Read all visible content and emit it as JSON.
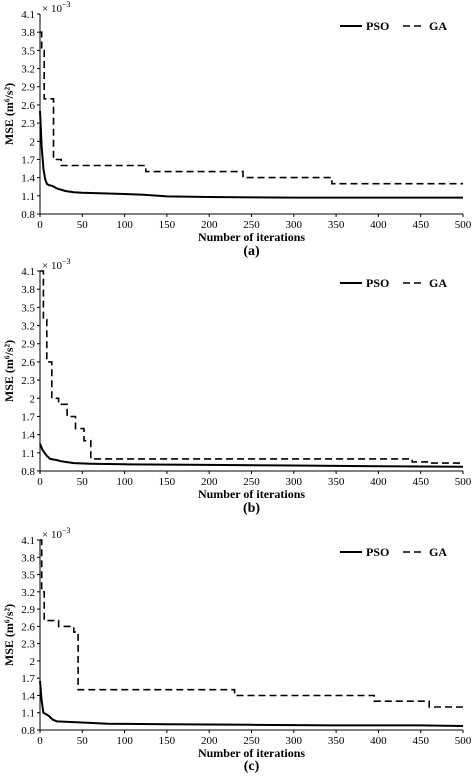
{
  "chart_data": [
    {
      "type": "line",
      "panel_label": "(a)",
      "multiplier_base": "× 10",
      "multiplier_exp": "−3",
      "xlabel": "Number of iterations",
      "ylabel": "MSE (m⁶/s²)",
      "xlim": [
        0,
        500
      ],
      "ylim": [
        0.8,
        4.1
      ],
      "x_ticks": [
        0,
        50,
        100,
        150,
        200,
        250,
        300,
        350,
        400,
        450,
        500
      ],
      "y_ticks": [
        0.8,
        1.1,
        1.4,
        1.7,
        2,
        2.3,
        2.6,
        2.9,
        3.2,
        3.5,
        3.8,
        4.1
      ],
      "legend_position": "top-right",
      "series": [
        {
          "name": "PSO",
          "style": "solid",
          "x": [
            0,
            2,
            4,
            6,
            8,
            10,
            15,
            20,
            30,
            40,
            50,
            100,
            120,
            140,
            150,
            200,
            300,
            400,
            500
          ],
          "y": [
            2.5,
            1.9,
            1.55,
            1.38,
            1.3,
            1.28,
            1.26,
            1.22,
            1.18,
            1.16,
            1.15,
            1.13,
            1.12,
            1.1,
            1.09,
            1.08,
            1.07,
            1.07,
            1.07
          ]
        },
        {
          "name": "GA",
          "style": "dashed",
          "step": true,
          "x": [
            0,
            2,
            5,
            16,
            25,
            125,
            240,
            345,
            500
          ],
          "y": [
            3.8,
            3.5,
            2.7,
            1.7,
            1.6,
            1.5,
            1.4,
            1.3,
            1.3
          ]
        }
      ]
    },
    {
      "type": "line",
      "panel_label": "(b)",
      "multiplier_base": "× 10",
      "multiplier_exp": "−3",
      "xlabel": "Number of iterations",
      "ylabel": "MSE (m⁶/s²)",
      "xlim": [
        0,
        500
      ],
      "ylim": [
        0.8,
        4.1
      ],
      "x_ticks": [
        0,
        50,
        100,
        150,
        200,
        250,
        300,
        350,
        400,
        450,
        500
      ],
      "y_ticks": [
        0.8,
        1.1,
        1.4,
        1.7,
        2,
        2.3,
        2.6,
        2.9,
        3.2,
        3.5,
        3.8,
        4.1
      ],
      "legend_position": "top-right",
      "series": [
        {
          "name": "PSO",
          "style": "solid",
          "x": [
            0,
            3,
            8,
            12,
            20,
            25,
            40,
            60,
            100,
            200,
            300,
            400,
            500
          ],
          "y": [
            1.25,
            1.15,
            1.05,
            1.0,
            0.98,
            0.96,
            0.93,
            0.92,
            0.91,
            0.9,
            0.89,
            0.88,
            0.87
          ]
        },
        {
          "name": "GA",
          "style": "dashed",
          "step": true,
          "x": [
            0,
            4,
            8,
            14,
            22,
            32,
            42,
            52,
            60,
            440,
            460,
            500
          ],
          "y": [
            4.1,
            3.3,
            2.6,
            2.0,
            1.9,
            1.7,
            1.5,
            1.3,
            1.0,
            0.95,
            0.93,
            0.93
          ]
        }
      ]
    },
    {
      "type": "line",
      "panel_label": "(c)",
      "multiplier_base": "× 10",
      "multiplier_exp": "−3",
      "xlabel": "Number of iterations",
      "ylabel": "MSE (m⁶/s²)",
      "xlim": [
        0,
        500
      ],
      "ylim": [
        0.8,
        4.1
      ],
      "x_ticks": [
        0,
        50,
        100,
        150,
        200,
        250,
        300,
        350,
        400,
        450,
        500
      ],
      "y_ticks": [
        0.8,
        1.1,
        1.4,
        1.7,
        2,
        2.3,
        2.6,
        2.9,
        3.2,
        3.5,
        3.8,
        4.1
      ],
      "legend_position": "top-right",
      "series": [
        {
          "name": "PSO",
          "style": "solid",
          "x": [
            0,
            2,
            4,
            10,
            15,
            20,
            50,
            80,
            150,
            250,
            350,
            450,
            500
          ],
          "y": [
            1.65,
            1.3,
            1.1,
            1.05,
            0.98,
            0.95,
            0.93,
            0.91,
            0.9,
            0.89,
            0.88,
            0.88,
            0.87
          ]
        },
        {
          "name": "GA",
          "style": "dashed",
          "step": true,
          "x": [
            0,
            2,
            5,
            22,
            40,
            45,
            230,
            395,
            460,
            470,
            500
          ],
          "y": [
            4.1,
            3.2,
            2.7,
            2.6,
            2.5,
            1.5,
            1.4,
            1.3,
            1.2,
            1.2,
            1.2
          ]
        }
      ]
    }
  ]
}
